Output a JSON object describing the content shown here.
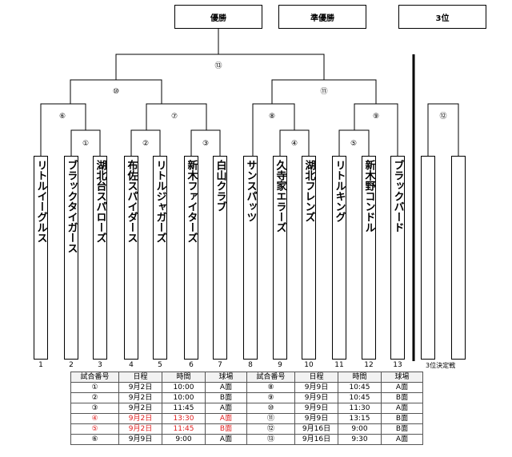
{
  "headers": {
    "champion": "優勝",
    "runner_up": "準優勝",
    "third": "3位"
  },
  "matches": {
    "m1": "①",
    "m2": "②",
    "m3": "③",
    "m4": "④",
    "m5": "⑤",
    "m6": "⑥",
    "m7": "⑦",
    "m8": "⑧",
    "m9": "⑨",
    "m10": "⑩",
    "m11": "⑪",
    "m12": "⑫",
    "m13": "⑬"
  },
  "teams": [
    {
      "seed": "1",
      "name": "リトルイーグルス"
    },
    {
      "seed": "2",
      "name": "ブラックタイガース"
    },
    {
      "seed": "3",
      "name": "湖北台スパローズ"
    },
    {
      "seed": "4",
      "name": "布佐スパイダース"
    },
    {
      "seed": "5",
      "name": "リトルジャガーズ"
    },
    {
      "seed": "6",
      "name": "新木ファイターズ"
    },
    {
      "seed": "7",
      "name": "白山クラブ"
    },
    {
      "seed": "8",
      "name": "サンスパッツ"
    },
    {
      "seed": "9",
      "name": "久寺家エラーズ"
    },
    {
      "seed": "10",
      "name": "湖北フレンズ"
    },
    {
      "seed": "11",
      "name": "リトルキング"
    },
    {
      "seed": "12",
      "name": "新木野コンドル"
    },
    {
      "seed": "13",
      "name": "ブラックバード"
    }
  ],
  "third_place_label": "3位決定戦",
  "schedule": {
    "headers": [
      "試合番号",
      "日程",
      "時間",
      "球場",
      "試合番号",
      "日程",
      "時間",
      "球場"
    ],
    "rows": [
      {
        "red": false,
        "cells": [
          "①",
          "9月2日",
          "10:00",
          "A面",
          "⑧",
          "9月9日",
          "10:45",
          "A面"
        ]
      },
      {
        "red": false,
        "cells": [
          "②",
          "9月2日",
          "10:00",
          "B面",
          "⑨",
          "9月9日",
          "10:45",
          "B面"
        ]
      },
      {
        "red": false,
        "cells": [
          "③",
          "9月2日",
          "11:45",
          "A面",
          "⑩",
          "9月9日",
          "11:30",
          "A面"
        ]
      },
      {
        "red": true,
        "cells": [
          "④",
          "9月2日",
          "13:30",
          "A面",
          "⑪",
          "9月9日",
          "13:15",
          "B面"
        ]
      },
      {
        "red": true,
        "cells": [
          "⑤",
          "9月2日",
          "11:45",
          "B面",
          "⑫",
          "9月16日",
          "9:00",
          "B面"
        ]
      },
      {
        "red": false,
        "cells": [
          "⑥",
          "9月9日",
          "9:00",
          "A面",
          "⑬",
          "9月16日",
          "9:30",
          "A面"
        ]
      }
    ]
  }
}
